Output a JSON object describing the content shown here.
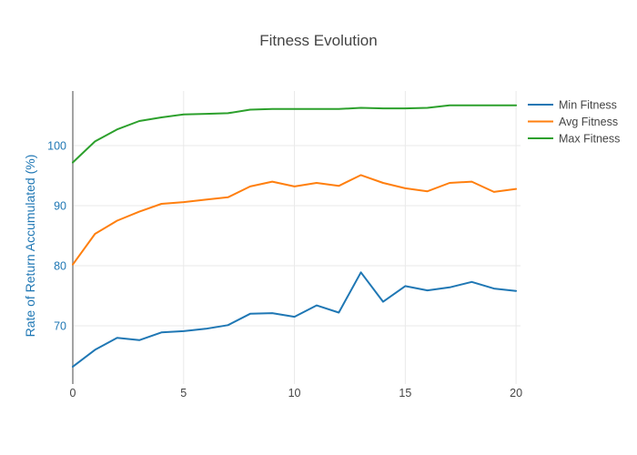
{
  "chart_data": {
    "type": "line",
    "title": "Fitness Evolution",
    "xlabel": "",
    "ylabel": "Rate of Return Accumulated (%)",
    "x": [
      0,
      1,
      2,
      3,
      4,
      5,
      6,
      7,
      8,
      9,
      10,
      11,
      12,
      13,
      14,
      15,
      16,
      17,
      18,
      19,
      20
    ],
    "series": [
      {
        "name": "Min Fitness",
        "color": "#1f77b4",
        "values": [
          63.2,
          66.0,
          68.0,
          67.6,
          68.9,
          69.1,
          69.5,
          70.1,
          72.0,
          72.1,
          71.5,
          73.4,
          72.2,
          78.9,
          74.0,
          76.6,
          75.9,
          76.4,
          77.3,
          76.2,
          75.8
        ]
      },
      {
        "name": "Avg Fitness",
        "color": "#ff7f0e",
        "values": [
          80.2,
          85.3,
          87.5,
          89.0,
          90.3,
          90.6,
          91.0,
          91.4,
          93.2,
          94.0,
          93.2,
          93.8,
          93.3,
          95.1,
          93.8,
          92.9,
          92.4,
          93.8,
          94.0,
          92.3,
          92.8
        ]
      },
      {
        "name": "Max Fitness",
        "color": "#2ca02c",
        "values": [
          97.2,
          100.7,
          102.7,
          104.1,
          104.7,
          105.2,
          105.3,
          105.4,
          106.0,
          106.1,
          106.1,
          106.1,
          106.1,
          106.3,
          106.2,
          106.2,
          106.3,
          106.7,
          106.7,
          106.7,
          106.7
        ]
      }
    ],
    "xticks": [
      0,
      5,
      10,
      15,
      20
    ],
    "yticks": [
      70,
      80,
      90,
      100
    ],
    "xlim": [
      0,
      20.2
    ],
    "ylim": [
      60.3,
      109.1
    ],
    "grid": true,
    "legend_position": "right",
    "colors": {
      "background": "#ffffff",
      "gridline": "#e9e9e9",
      "zeroline": "#999999",
      "title_text": "#444444",
      "x_tick_text": "#444444",
      "y_tick_text": "#1f77b4",
      "y_axis_title_text": "#1f77b4",
      "legend_text": "#444444"
    }
  }
}
